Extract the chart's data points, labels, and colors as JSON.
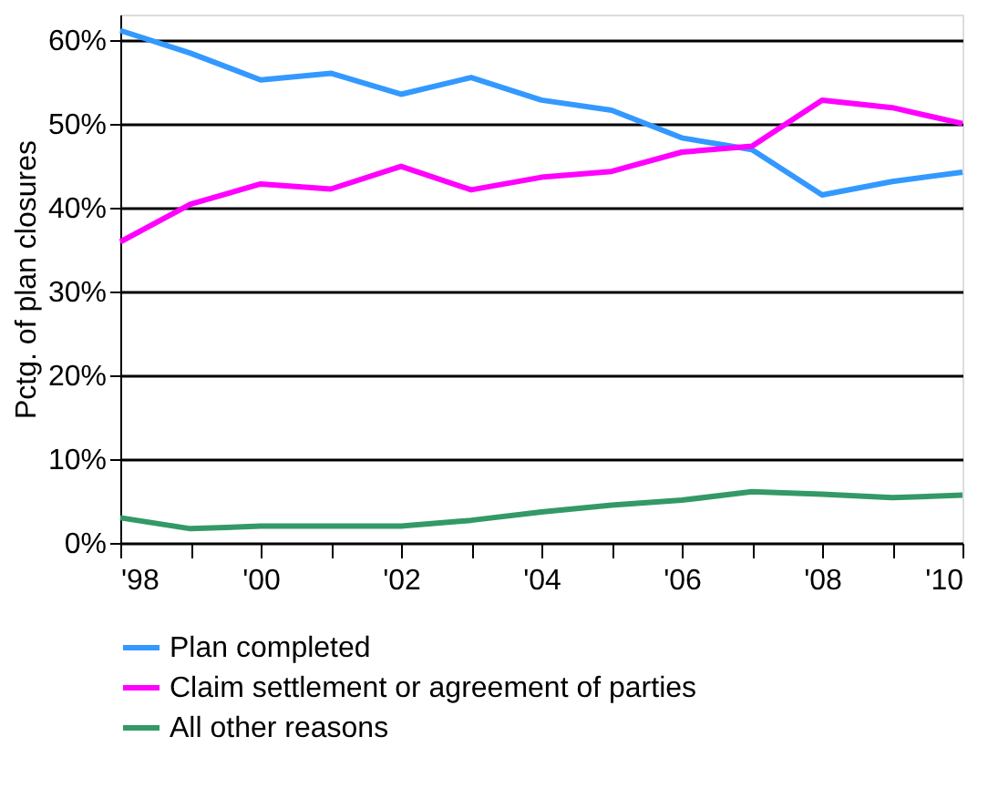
{
  "chart_data": {
    "type": "line",
    "ylabel": "Pctg. of plan closures",
    "x": [
      1998,
      1999,
      2000,
      2001,
      2002,
      2003,
      2004,
      2005,
      2006,
      2007,
      2008,
      2009,
      2010
    ],
    "series": [
      {
        "name": "Plan completed",
        "color": "#3399ff",
        "values": [
          61.1,
          58.4,
          55.2,
          56.0,
          53.5,
          55.5,
          52.8,
          51.6,
          48.3,
          46.9,
          41.5,
          43.1,
          44.2
        ]
      },
      {
        "name": "Claim settlement or agreement of parties",
        "color": "#ff00ff",
        "values": [
          35.9,
          40.4,
          42.8,
          42.2,
          44.9,
          42.1,
          43.6,
          44.3,
          46.6,
          47.3,
          52.8,
          51.9,
          50.0
        ]
      },
      {
        "name": "All other reasons",
        "color": "#339966",
        "values": [
          3.0,
          1.7,
          2.0,
          2.0,
          2.0,
          2.7,
          3.7,
          4.5,
          5.1,
          6.1,
          5.8,
          5.4,
          5.7
        ]
      }
    ],
    "xlim": [
      1998,
      2010
    ],
    "xticks": [
      {
        "value": 1998,
        "label": "'98"
      },
      {
        "value": 1999,
        "label": null
      },
      {
        "value": 2000,
        "label": "'00"
      },
      {
        "value": 2001,
        "label": null
      },
      {
        "value": 2002,
        "label": "'02"
      },
      {
        "value": 2003,
        "label": null
      },
      {
        "value": 2004,
        "label": "'04"
      },
      {
        "value": 2005,
        "label": null
      },
      {
        "value": 2006,
        "label": "'06"
      },
      {
        "value": 2007,
        "label": null
      },
      {
        "value": 2008,
        "label": "'08"
      },
      {
        "value": 2009,
        "label": null
      },
      {
        "value": 2010,
        "label": "'10"
      }
    ],
    "ylim": [
      0,
      63
    ],
    "yticks": [
      {
        "value": 0,
        "label": "0%"
      },
      {
        "value": 10,
        "label": "10%"
      },
      {
        "value": 20,
        "label": "20%"
      },
      {
        "value": 30,
        "label": "30%"
      },
      {
        "value": 40,
        "label": "40%"
      },
      {
        "value": 50,
        "label": "50%"
      },
      {
        "value": 60,
        "label": "60%"
      }
    ],
    "grid": "y",
    "legend": "bottom",
    "marker": "none",
    "line_style": "solid"
  }
}
